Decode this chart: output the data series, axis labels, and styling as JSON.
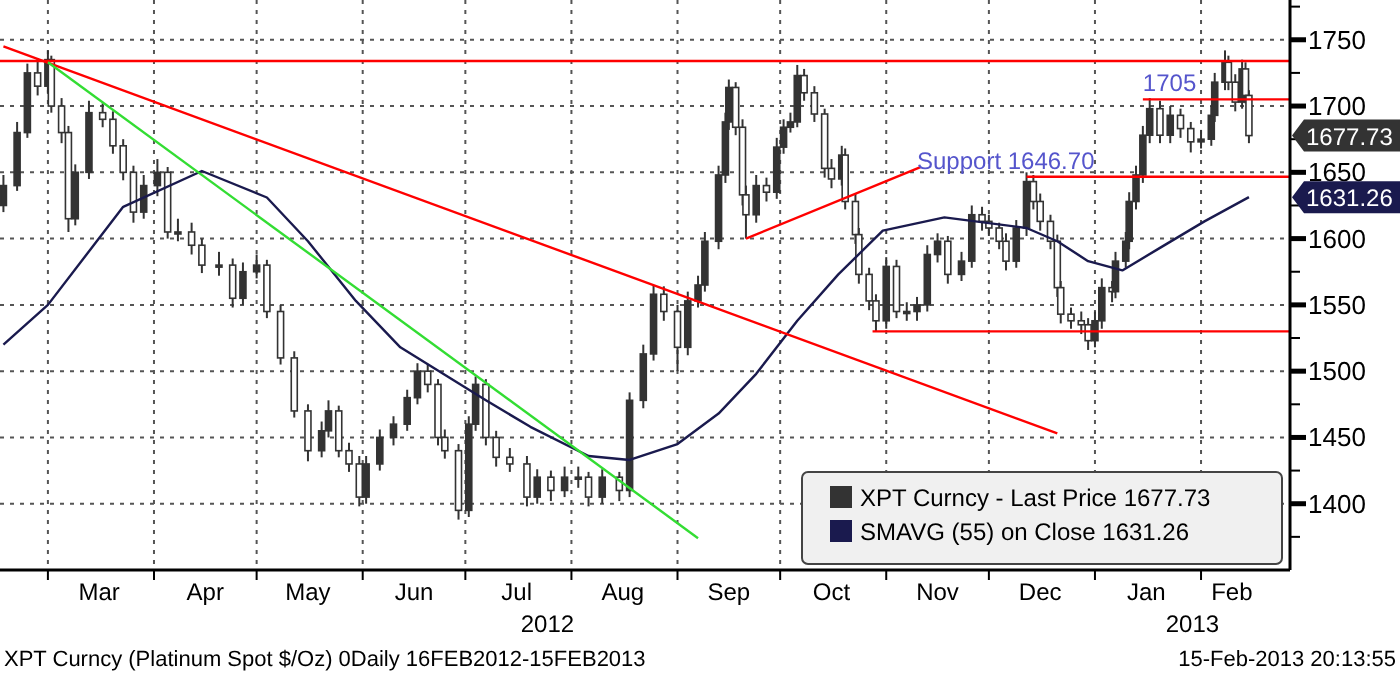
{
  "chart_data": {
    "type": "candlestick",
    "xlim": [
      "2012-02-16",
      "2013-02-27"
    ],
    "ylim": [
      1350,
      1780
    ],
    "xticks": [
      {
        "value": "2012-03-01",
        "label": null
      },
      {
        "value": "2012-03-16",
        "label": "Mar"
      },
      {
        "value": "2012-04-01",
        "label": null
      },
      {
        "value": "2012-04-16",
        "label": "Apr"
      },
      {
        "value": "2012-05-01",
        "label": null
      },
      {
        "value": "2012-05-16",
        "label": "May"
      },
      {
        "value": "2012-06-01",
        "label": null
      },
      {
        "value": "2012-06-16",
        "label": "Jun"
      },
      {
        "value": "2012-07-01",
        "label": null
      },
      {
        "value": "2012-07-16",
        "label": "Jul"
      },
      {
        "value": "2012-08-01",
        "label": null
      },
      {
        "value": "2012-08-16",
        "label": "Aug"
      },
      {
        "value": "2012-09-01",
        "label": null
      },
      {
        "value": "2012-09-16",
        "label": "Sep"
      },
      {
        "value": "2012-10-01",
        "label": null
      },
      {
        "value": "2012-10-16",
        "label": "Oct"
      },
      {
        "value": "2012-11-01",
        "label": null
      },
      {
        "value": "2012-11-16",
        "label": "Nov"
      },
      {
        "value": "2012-12-01",
        "label": null
      },
      {
        "value": "2012-12-16",
        "label": "Dec"
      },
      {
        "value": "2013-01-01",
        "label": null
      },
      {
        "value": "2013-01-16",
        "label": "Jan"
      },
      {
        "value": "2013-02-01",
        "label": null
      },
      {
        "value": "2013-02-10",
        "label": "Feb"
      }
    ],
    "yticks": [
      {
        "value": 1375,
        "label": null
      },
      1400,
      {
        "value": 1425,
        "label": null
      },
      1450,
      {
        "value": 1475,
        "label": null
      },
      1500,
      {
        "value": 1525,
        "label": null
      },
      1550,
      {
        "value": 1575,
        "label": null
      },
      1600,
      {
        "value": 1625,
        "label": null
      },
      1650,
      {
        "value": 1675,
        "label": null
      },
      1700,
      {
        "value": 1725,
        "label": null
      },
      1750,
      {
        "value": 1775,
        "label": null
      }
    ],
    "grid": true,
    "legend": "bottom right",
    "series": [
      {
        "name": "XPT Curncy - Last Price 1677.73",
        "color": "#333333",
        "x": [
          "2012-02-17",
          "2012-02-21",
          "2012-02-24",
          "2012-02-27",
          "2012-03-01",
          "2012-03-02",
          "2012-03-05",
          "2012-03-07",
          "2012-03-09",
          "2012-03-13",
          "2012-03-17",
          "2012-03-20",
          "2012-03-23",
          "2012-03-26",
          "2012-03-29",
          "2012-04-02",
          "2012-04-05",
          "2012-04-08",
          "2012-04-12",
          "2012-04-15",
          "2012-04-20",
          "2012-04-24",
          "2012-04-27",
          "2012-05-01",
          "2012-05-04",
          "2012-05-08",
          "2012-05-12",
          "2012-05-16",
          "2012-05-20",
          "2012-05-22",
          "2012-05-25",
          "2012-05-28",
          "2012-05-31",
          "2012-06-02",
          "2012-06-06",
          "2012-06-10",
          "2012-06-14",
          "2012-06-17",
          "2012-06-20",
          "2012-06-23",
          "2012-06-25",
          "2012-06-29",
          "2012-07-02",
          "2012-07-04",
          "2012-07-07",
          "2012-07-10",
          "2012-07-14",
          "2012-07-19",
          "2012-07-22",
          "2012-07-26",
          "2012-07-30",
          "2012-08-03",
          "2012-08-06",
          "2012-08-10",
          "2012-08-15",
          "2012-08-18",
          "2012-08-22",
          "2012-08-25",
          "2012-08-28",
          "2012-09-01",
          "2012-09-04",
          "2012-09-07",
          "2012-09-09",
          "2012-09-13",
          "2012-09-15",
          "2012-09-16",
          "2012-09-18",
          "2012-09-20",
          "2012-09-21",
          "2012-09-24",
          "2012-09-27",
          "2012-09-30",
          "2012-10-02",
          "2012-10-04",
          "2012-10-06",
          "2012-10-08",
          "2012-10-11",
          "2012-10-14",
          "2012-10-16",
          "2012-10-19",
          "2012-10-20",
          "2012-10-23",
          "2012-10-24",
          "2012-10-27",
          "2012-10-29",
          "2012-11-01",
          "2012-11-04",
          "2012-11-07",
          "2012-11-10",
          "2012-11-13",
          "2012-11-16",
          "2012-11-19",
          "2012-11-23",
          "2012-11-26",
          "2012-11-29",
          "2012-12-01",
          "2012-12-04",
          "2012-12-06",
          "2012-12-09",
          "2012-12-12",
          "2012-12-14",
          "2012-12-16",
          "2012-12-19",
          "2012-12-21",
          "2012-12-22",
          "2012-12-25",
          "2012-12-28",
          "2012-12-30",
          "2013-01-01",
          "2013-01-03",
          "2013-01-06",
          "2013-01-07",
          "2013-01-10",
          "2013-01-11",
          "2013-01-13",
          "2013-01-15",
          "2013-01-17",
          "2013-01-20",
          "2013-01-23",
          "2013-01-26",
          "2013-01-29",
          "2013-02-01",
          "2013-02-04",
          "2013-02-05",
          "2013-02-08",
          "2013-02-09",
          "2013-02-11",
          "2013-02-13",
          "2013-02-14",
          "2013-02-15"
        ],
        "ohlc": [
          [
            1625,
            1648,
            1620,
            1640
          ],
          [
            1640,
            1688,
            1636,
            1680
          ],
          [
            1680,
            1732,
            1676,
            1725
          ],
          [
            1725,
            1736,
            1708,
            1715
          ],
          [
            1715,
            1742,
            1710,
            1735
          ],
          [
            1735,
            1738,
            1695,
            1700
          ],
          [
            1700,
            1706,
            1672,
            1680
          ],
          [
            1680,
            1685,
            1605,
            1615
          ],
          [
            1615,
            1656,
            1610,
            1650
          ],
          [
            1650,
            1704,
            1645,
            1695
          ],
          [
            1695,
            1702,
            1684,
            1690
          ],
          [
            1690,
            1696,
            1664,
            1670
          ],
          [
            1670,
            1675,
            1644,
            1650
          ],
          [
            1650,
            1655,
            1612,
            1620
          ],
          [
            1620,
            1648,
            1615,
            1640
          ],
          [
            1640,
            1660,
            1632,
            1650
          ],
          [
            1650,
            1654,
            1600,
            1605
          ],
          [
            1605,
            1615,
            1598,
            1605
          ],
          [
            1605,
            1612,
            1588,
            1595
          ],
          [
            1595,
            1600,
            1574,
            1580
          ],
          [
            1580,
            1590,
            1572,
            1580
          ],
          [
            1580,
            1585,
            1548,
            1555
          ],
          [
            1555,
            1582,
            1550,
            1575
          ],
          [
            1575,
            1588,
            1570,
            1580
          ],
          [
            1580,
            1584,
            1540,
            1545
          ],
          [
            1545,
            1550,
            1505,
            1510
          ],
          [
            1510,
            1515,
            1465,
            1470
          ],
          [
            1470,
            1475,
            1432,
            1440
          ],
          [
            1440,
            1462,
            1435,
            1455
          ],
          [
            1455,
            1478,
            1450,
            1470
          ],
          [
            1470,
            1474,
            1435,
            1440
          ],
          [
            1440,
            1446,
            1424,
            1430
          ],
          [
            1430,
            1436,
            1398,
            1405
          ],
          [
            1405,
            1436,
            1400,
            1430
          ],
          [
            1430,
            1456,
            1425,
            1450
          ],
          [
            1450,
            1466,
            1444,
            1460
          ],
          [
            1460,
            1486,
            1455,
            1480
          ],
          [
            1480,
            1506,
            1475,
            1500
          ],
          [
            1500,
            1505,
            1484,
            1490
          ],
          [
            1490,
            1494,
            1444,
            1450
          ],
          [
            1450,
            1456,
            1434,
            1440
          ],
          [
            1440,
            1445,
            1388,
            1395
          ],
          [
            1395,
            1466,
            1390,
            1460
          ],
          [
            1460,
            1496,
            1455,
            1490
          ],
          [
            1490,
            1494,
            1444,
            1450
          ],
          [
            1450,
            1455,
            1428,
            1435
          ],
          [
            1435,
            1442,
            1424,
            1430
          ],
          [
            1430,
            1436,
            1398,
            1405
          ],
          [
            1405,
            1426,
            1400,
            1420
          ],
          [
            1420,
            1425,
            1402,
            1410
          ],
          [
            1410,
            1428,
            1405,
            1420
          ],
          [
            1420,
            1428,
            1412,
            1420
          ],
          [
            1420,
            1424,
            1398,
            1405
          ],
          [
            1405,
            1426,
            1400,
            1420
          ],
          [
            1420,
            1424,
            1402,
            1410
          ],
          [
            1410,
            1484,
            1405,
            1478
          ],
          [
            1478,
            1520,
            1472,
            1513
          ],
          [
            1513,
            1565,
            1508,
            1558
          ],
          [
            1558,
            1564,
            1538,
            1545
          ],
          [
            1545,
            1550,
            1500,
            1518
          ],
          [
            1518,
            1560,
            1512,
            1553
          ],
          [
            1553,
            1572,
            1548,
            1565
          ],
          [
            1565,
            1605,
            1560,
            1598
          ],
          [
            1598,
            1655,
            1592,
            1648
          ],
          [
            1648,
            1695,
            1642,
            1688
          ],
          [
            1688,
            1720,
            1682,
            1714
          ],
          [
            1714,
            1718,
            1678,
            1684
          ],
          [
            1684,
            1690,
            1625,
            1633
          ],
          [
            1633,
            1640,
            1600,
            1618
          ],
          [
            1618,
            1648,
            1612,
            1640
          ],
          [
            1640,
            1646,
            1628,
            1635
          ],
          [
            1635,
            1676,
            1630,
            1669
          ],
          [
            1669,
            1690,
            1664,
            1684
          ],
          [
            1684,
            1695,
            1680,
            1688
          ],
          [
            1688,
            1731,
            1684,
            1723
          ],
          [
            1723,
            1728,
            1704,
            1710
          ],
          [
            1710,
            1715,
            1688,
            1694
          ],
          [
            1694,
            1698,
            1646,
            1653
          ],
          [
            1653,
            1660,
            1638,
            1645
          ],
          [
            1645,
            1670,
            1640,
            1663
          ],
          [
            1663,
            1668,
            1622,
            1628
          ],
          [
            1628,
            1634,
            1596,
            1603
          ],
          [
            1603,
            1608,
            1566,
            1573
          ],
          [
            1573,
            1578,
            1546,
            1553
          ],
          [
            1553,
            1558,
            1530,
            1538
          ],
          [
            1538,
            1586,
            1532,
            1579
          ],
          [
            1579,
            1584,
            1540,
            1545
          ],
          [
            1545,
            1552,
            1538,
            1545
          ],
          [
            1545,
            1556,
            1538,
            1550
          ],
          [
            1550,
            1595,
            1545,
            1588
          ],
          [
            1588,
            1604,
            1582,
            1598
          ],
          [
            1598,
            1602,
            1566,
            1573
          ],
          [
            1573,
            1590,
            1568,
            1583
          ],
          [
            1583,
            1625,
            1578,
            1618
          ],
          [
            1618,
            1624,
            1606,
            1613
          ],
          [
            1613,
            1618,
            1602,
            1608
          ],
          [
            1608,
            1612,
            1592,
            1598
          ],
          [
            1598,
            1604,
            1576,
            1583
          ],
          [
            1583,
            1614,
            1578,
            1608
          ],
          [
            1608,
            1650,
            1602,
            1643
          ],
          [
            1643,
            1648,
            1622,
            1628
          ],
          [
            1628,
            1634,
            1606,
            1613
          ],
          [
            1613,
            1618,
            1592,
            1598
          ],
          [
            1598,
            1603,
            1556,
            1563
          ],
          [
            1563,
            1568,
            1536,
            1543
          ],
          [
            1543,
            1548,
            1532,
            1538
          ],
          [
            1538,
            1545,
            1528,
            1535
          ],
          [
            1535,
            1540,
            1516,
            1523
          ],
          [
            1523,
            1545,
            1518,
            1538
          ],
          [
            1538,
            1570,
            1532,
            1563
          ],
          [
            1563,
            1568,
            1552,
            1560
          ],
          [
            1560,
            1590,
            1555,
            1583
          ],
          [
            1583,
            1605,
            1578,
            1598
          ],
          [
            1598,
            1635,
            1592,
            1628
          ],
          [
            1628,
            1655,
            1622,
            1648
          ],
          [
            1648,
            1685,
            1642,
            1678
          ],
          [
            1678,
            1706,
            1672,
            1698
          ],
          [
            1698,
            1704,
            1672,
            1678
          ],
          [
            1678,
            1700,
            1672,
            1693
          ],
          [
            1693,
            1698,
            1676,
            1683
          ],
          [
            1683,
            1688,
            1665,
            1673
          ],
          [
            1673,
            1682,
            1668,
            1675
          ],
          [
            1675,
            1700,
            1670,
            1693
          ],
          [
            1693,
            1725,
            1688,
            1718
          ],
          [
            1718,
            1742,
            1712,
            1733
          ],
          [
            1733,
            1738,
            1712,
            1718
          ],
          [
            1718,
            1724,
            1696,
            1703
          ],
          [
            1703,
            1735,
            1698,
            1728
          ],
          [
            1728,
            1733,
            1702,
            1708
          ],
          [
            1708,
            1712,
            1672,
            1677.73
          ]
        ]
      },
      {
        "type": "line",
        "name": "SMAVG (55) on Close 1631.26",
        "color": "#1a1a4e",
        "x": [
          "2012-02-17",
          "2012-03-01",
          "2012-03-23",
          "2012-04-15",
          "2012-05-04",
          "2012-05-16",
          "2012-05-30",
          "2012-06-12",
          "2012-07-07",
          "2012-07-20",
          "2012-08-06",
          "2012-08-18",
          "2012-09-01",
          "2012-09-13",
          "2012-09-24",
          "2012-10-06",
          "2012-10-18",
          "2012-10-31",
          "2012-11-18",
          "2012-12-12",
          "2012-12-21",
          "2012-12-30",
          "2013-01-09",
          "2013-01-20",
          "2013-02-02",
          "2013-02-15"
        ],
        "values": [
          1520,
          1550,
          1624,
          1651,
          1631,
          1598,
          1553,
          1518,
          1478,
          1458,
          1436,
          1433,
          1445,
          1468,
          1498,
          1538,
          1573,
          1606,
          1616,
          1608,
          1598,
          1583,
          1576,
          1593,
          1613,
          1631.26
        ]
      },
      {
        "type": "line",
        "color": "#ff0000",
        "x": [
          "2012-02-16",
          "2013-02-27"
        ],
        "values": [
          1734,
          1734
        ]
      },
      {
        "type": "line",
        "color": "#ff0000",
        "x": [
          "2012-02-17",
          "2012-12-21"
        ],
        "values": [
          1745,
          1453
        ]
      },
      {
        "type": "line",
        "color": "#33dd33",
        "x": [
          "2012-03-01",
          "2012-09-07"
        ],
        "values": [
          1733,
          1374
        ]
      },
      {
        "type": "line",
        "color": "#ff0000",
        "x": [
          "2012-09-21",
          "2012-11-11"
        ],
        "values": [
          1600,
          1654
        ]
      },
      {
        "type": "line",
        "color": "#ff0000",
        "x": [
          "2013-01-15",
          "2013-02-27"
        ],
        "values": [
          1705,
          1705
        ]
      },
      {
        "type": "line",
        "color": "#ff0000",
        "x": [
          "2012-12-12",
          "2013-02-27"
        ],
        "values": [
          1646.7,
          1646.7
        ]
      },
      {
        "type": "line",
        "color": "#ff0000",
        "x": [
          "2012-10-28",
          "2013-02-27"
        ],
        "values": [
          1530,
          1530
        ]
      }
    ],
    "annotations": [
      {
        "text": "1705",
        "x": "2013-01-15",
        "y": 1705
      },
      {
        "text": "Support 1646.70",
        "x": "2012-11-10",
        "y": 1646.7
      },
      "1677.73",
      "1631.26",
      "2012",
      "2013",
      "XPT Curncy (Platinum Spot  $/Oz) 0Daily 16FEB2012-15FEB2013",
      "15-Feb-2013 20:13:55"
    ]
  }
}
